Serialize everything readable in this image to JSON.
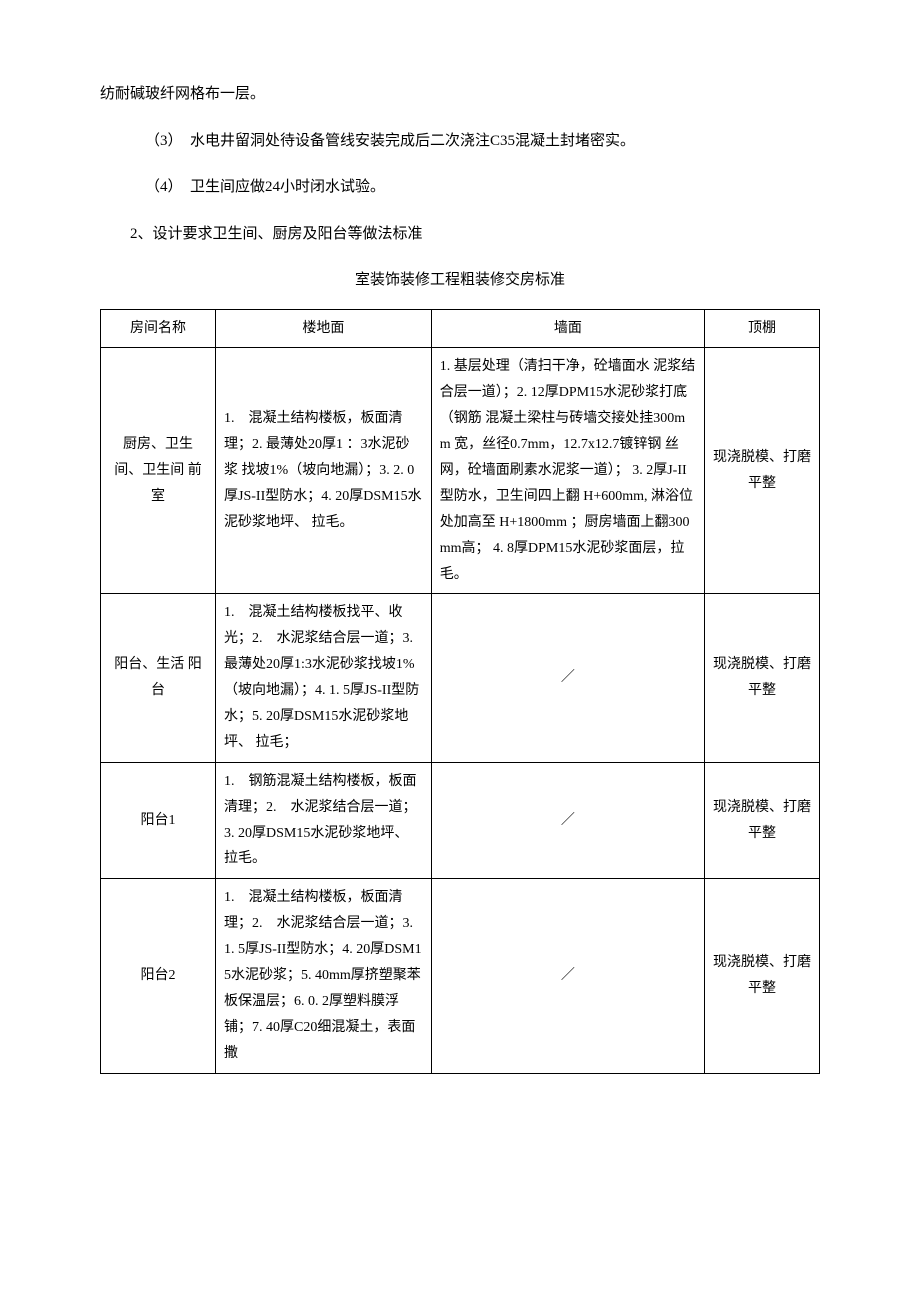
{
  "paragraphs": {
    "p0": "纺耐碱玻纤网格布一层。",
    "p1": "（3）　水电井留洞处待设备管线安装完成后二次浇注C35混凝土封堵密实。",
    "p2": "（4）　卫生间应做24小时闭水试验。",
    "p3": "2、设计要求卫生间、厨房及阳台等做法标准",
    "tableTitle": "室装饰装修工程粗装修交房标准"
  },
  "table": {
    "headers": {
      "room": "房间名称",
      "floor": "楼地面",
      "wall": "墙面",
      "ceiling": "顶棚"
    },
    "rows": [
      {
        "room": "厨房、卫生 间、卫生间 前室",
        "floor": "1.　混凝土结构楼板，板面清理；2. 最薄处20厚1 ：3水泥砂浆 找坡1%（坡向地漏）；3. 2. 0厚JS-II型防水；4. 20厚DSM15水泥砂浆地坪、 拉毛。",
        "wall": "1. 基层处理（清扫干净，砼墙面水 泥浆结合层一道）；2. 12厚DPM15水泥砂浆打底（钢筋 混凝土梁柱与砖墙交接处挂300mm 宽，丝径0.7mm，12.7x12.7镀锌钢 丝网，砼墙面刷素水泥浆一道）； 3. 2厚J-II型防水，卫生间四上翻 H+600mm, 淋浴位处加高至 H+1800mm ；厨房墙面上翻300mm高； 4. 8厚DPM15水泥砂浆面层，拉毛。",
        "ceiling": "现浇脱模、打磨平整"
      },
      {
        "room": "阳台、生活 阳台",
        "floor": "1.　混凝土结构楼板找平、收光；2.　水泥浆结合层一道；3. 最薄处20厚1:3水泥砂浆找坡1% （坡向地漏）；4. 1. 5厚JS-II型防水；5. 20厚DSM15水泥砂浆地坪、 拉毛；",
        "wall": "／",
        "ceiling": "现浇脱模、打磨平整"
      },
      {
        "room": "阳台1",
        "floor": "1.　钢筋混凝土结构楼板，板面清理；2.　水泥浆结合层一道；3. 20厚DSM15水泥砂浆地坪、 拉毛。",
        "wall": "／",
        "ceiling": "现浇脱模、打磨平整"
      },
      {
        "room": "阳台2",
        "floor": "1.　混凝土结构楼板，板面清理；2.　水泥浆结合层一道；3. 1. 5厚JS-II型防水；4. 20厚DSM15水泥砂浆；5. 40mm厚挤塑聚苯板保温层；6. 0. 2厚塑料膜浮铺；7. 40厚C20细混凝土，表面撒",
        "wall": "／",
        "ceiling": "现浇脱模、打磨平整"
      }
    ]
  }
}
